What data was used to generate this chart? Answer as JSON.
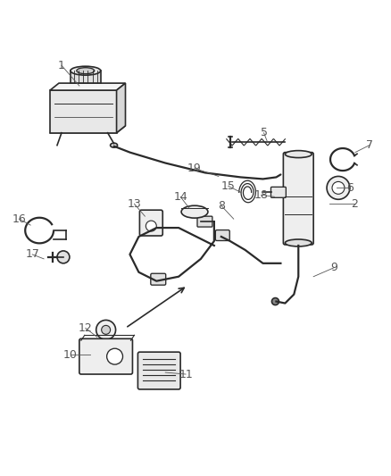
{
  "bg_color": "#ffffff",
  "line_color": "#2a2a2a",
  "label_color": "#555555",
  "fig_width": 4.38,
  "fig_height": 5.33,
  "dpi": 100
}
